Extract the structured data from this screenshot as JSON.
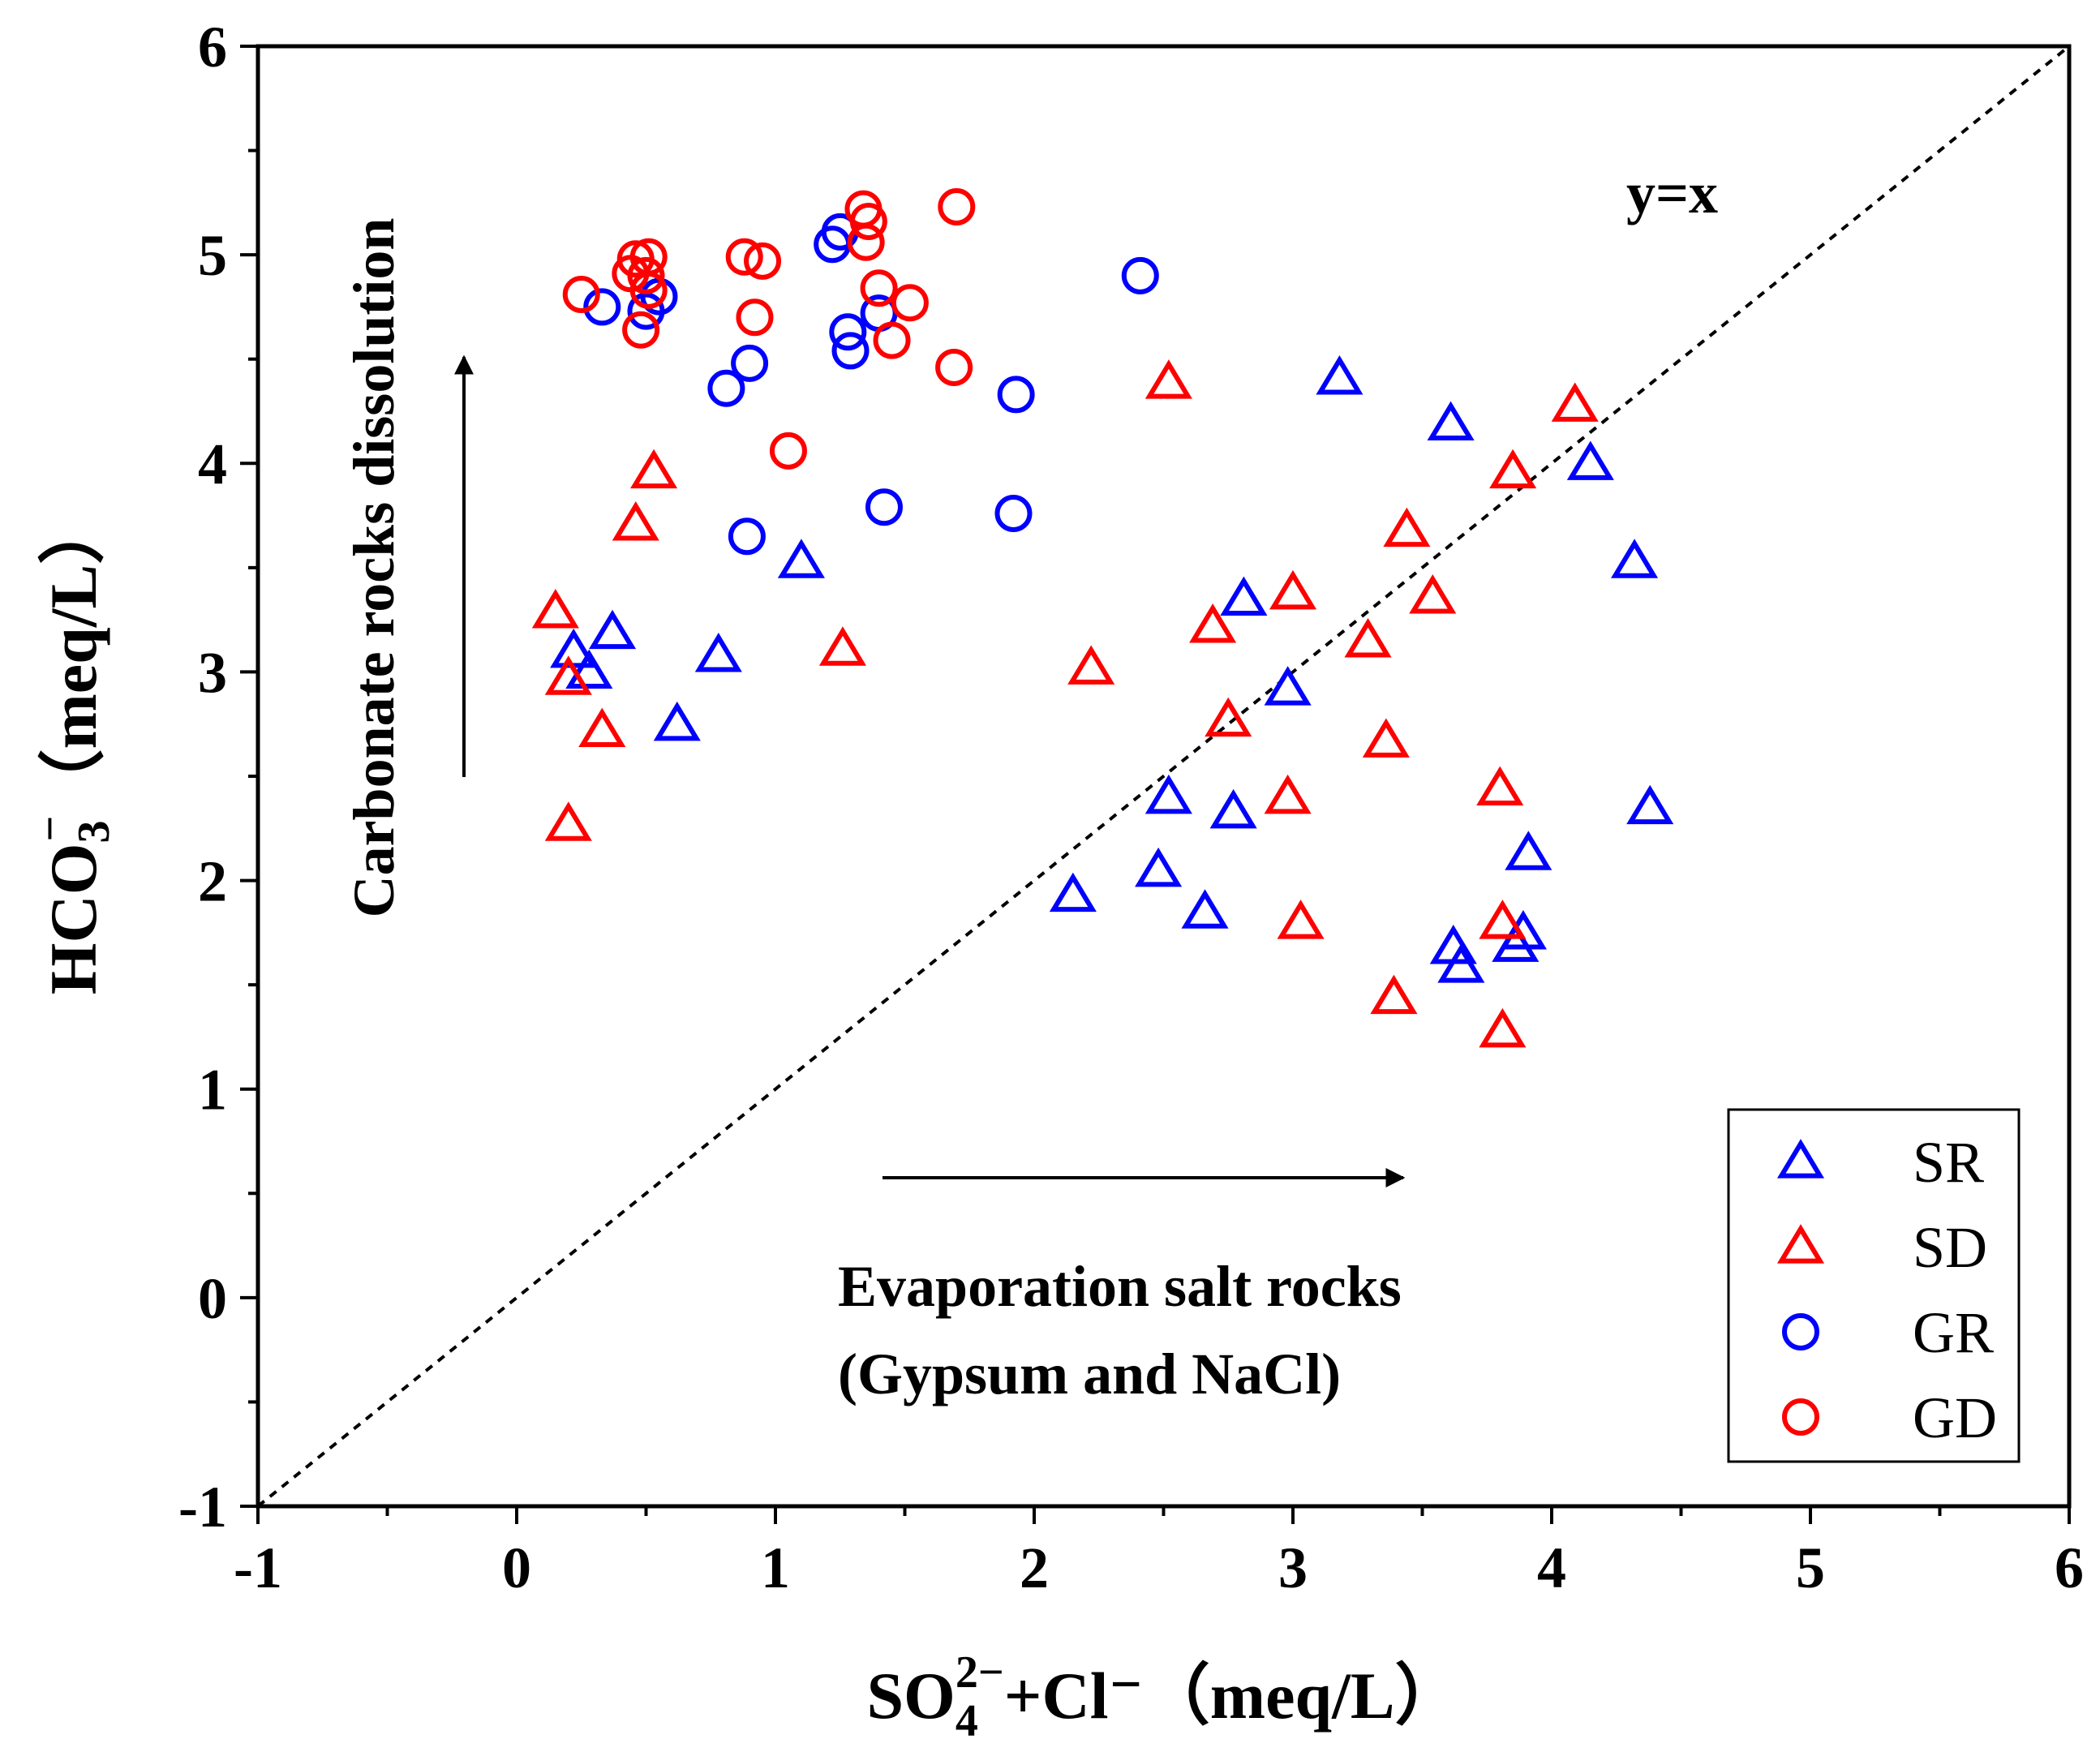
{
  "chart_data": {
    "type": "scatter",
    "title": "",
    "xlabel": {
      "prefix": "SO",
      "sub": "4",
      "sup": "2−",
      "suffix": "+Cl⁻（meq/L）"
    },
    "ylabel": {
      "prefix": "HCO",
      "sub": "3",
      "sup": "−",
      "suffix": "（meq/L）"
    },
    "xlim": [
      -1,
      6
    ],
    "ylim": [
      -1,
      6
    ],
    "xticks": [
      -1,
      0,
      1,
      2,
      3,
      4,
      5,
      6
    ],
    "yticks": [
      -1,
      0,
      1,
      2,
      3,
      4,
      5,
      6
    ],
    "grid": false,
    "legend_position": "bottom-right",
    "reference_line": {
      "label": "y=x",
      "slope": 1,
      "intercept": 0,
      "style": "dashed"
    },
    "annotations": {
      "vertical_arrow": "Carbonate rocks dissolution",
      "horizontal_arrow_line1": "Evaporation salt rocks",
      "horizontal_arrow_line2": "(Gypsum and NaCl)"
    },
    "series": [
      {
        "name": "SR",
        "marker": "triangle",
        "color": "#0000ff",
        "points": [
          [
            0.22,
            3.1
          ],
          [
            0.28,
            3.0
          ],
          [
            0.37,
            3.19
          ],
          [
            0.62,
            2.75
          ],
          [
            0.78,
            3.08
          ],
          [
            1.1,
            3.53
          ],
          [
            2.15,
            1.93
          ],
          [
            2.48,
            2.05
          ],
          [
            2.52,
            2.4
          ],
          [
            2.66,
            1.85
          ],
          [
            2.77,
            2.33
          ],
          [
            2.81,
            3.35
          ],
          [
            2.98,
            2.92
          ],
          [
            3.18,
            4.41
          ],
          [
            3.62,
            1.68
          ],
          [
            3.65,
            1.59
          ],
          [
            3.61,
            4.19
          ],
          [
            3.86,
            1.69
          ],
          [
            3.89,
            1.75
          ],
          [
            3.91,
            2.13
          ],
          [
            4.15,
            4.0
          ],
          [
            4.32,
            3.53
          ],
          [
            4.38,
            2.35
          ]
        ]
      },
      {
        "name": "SD",
        "marker": "triangle",
        "color": "#ff0000",
        "points": [
          [
            0.15,
            3.29
          ],
          [
            0.2,
            2.97
          ],
          [
            0.2,
            2.27
          ],
          [
            0.33,
            2.72
          ],
          [
            0.46,
            3.71
          ],
          [
            0.53,
            3.96
          ],
          [
            1.26,
            3.11
          ],
          [
            2.22,
            3.02
          ],
          [
            2.52,
            4.39
          ],
          [
            2.69,
            3.22
          ],
          [
            2.75,
            2.77
          ],
          [
            2.98,
            2.4
          ],
          [
            3.0,
            3.38
          ],
          [
            3.03,
            1.8
          ],
          [
            3.29,
            3.15
          ],
          [
            3.36,
            2.67
          ],
          [
            3.39,
            1.44
          ],
          [
            3.44,
            3.68
          ],
          [
            3.54,
            3.36
          ],
          [
            3.8,
            2.44
          ],
          [
            3.81,
            1.8
          ],
          [
            3.81,
            1.28
          ],
          [
            3.85,
            3.96
          ],
          [
            4.09,
            4.28
          ]
        ]
      },
      {
        "name": "GR",
        "marker": "circle",
        "color": "#0000ff",
        "points": [
          [
            0.33,
            4.75
          ],
          [
            0.5,
            4.73
          ],
          [
            0.55,
            4.8
          ],
          [
            0.81,
            4.36
          ],
          [
            0.89,
            3.65
          ],
          [
            0.9,
            4.48
          ],
          [
            1.22,
            5.05
          ],
          [
            1.25,
            5.11
          ],
          [
            1.28,
            4.63
          ],
          [
            1.29,
            4.54
          ],
          [
            1.4,
            4.72
          ],
          [
            1.42,
            3.79
          ],
          [
            1.92,
            3.76
          ],
          [
            1.93,
            4.33
          ],
          [
            2.41,
            4.9
          ]
        ]
      },
      {
        "name": "GD",
        "marker": "circle",
        "color": "#ff0000",
        "points": [
          [
            0.25,
            4.81
          ],
          [
            0.44,
            4.91
          ],
          [
            0.46,
            4.98
          ],
          [
            0.48,
            4.64
          ],
          [
            0.5,
            4.9
          ],
          [
            0.51,
            4.99
          ],
          [
            0.51,
            4.83
          ],
          [
            0.88,
            4.99
          ],
          [
            0.92,
            4.7
          ],
          [
            0.95,
            4.97
          ],
          [
            1.05,
            4.06
          ],
          [
            1.34,
            5.22
          ],
          [
            1.35,
            5.06
          ],
          [
            1.36,
            5.16
          ],
          [
            1.4,
            4.84
          ],
          [
            1.45,
            4.59
          ],
          [
            1.52,
            4.77
          ],
          [
            1.69,
            4.46
          ],
          [
            1.7,
            5.23
          ]
        ]
      }
    ]
  },
  "colors": {
    "blue": "#0000ff",
    "red": "#ff0000",
    "axis": "#000000"
  }
}
